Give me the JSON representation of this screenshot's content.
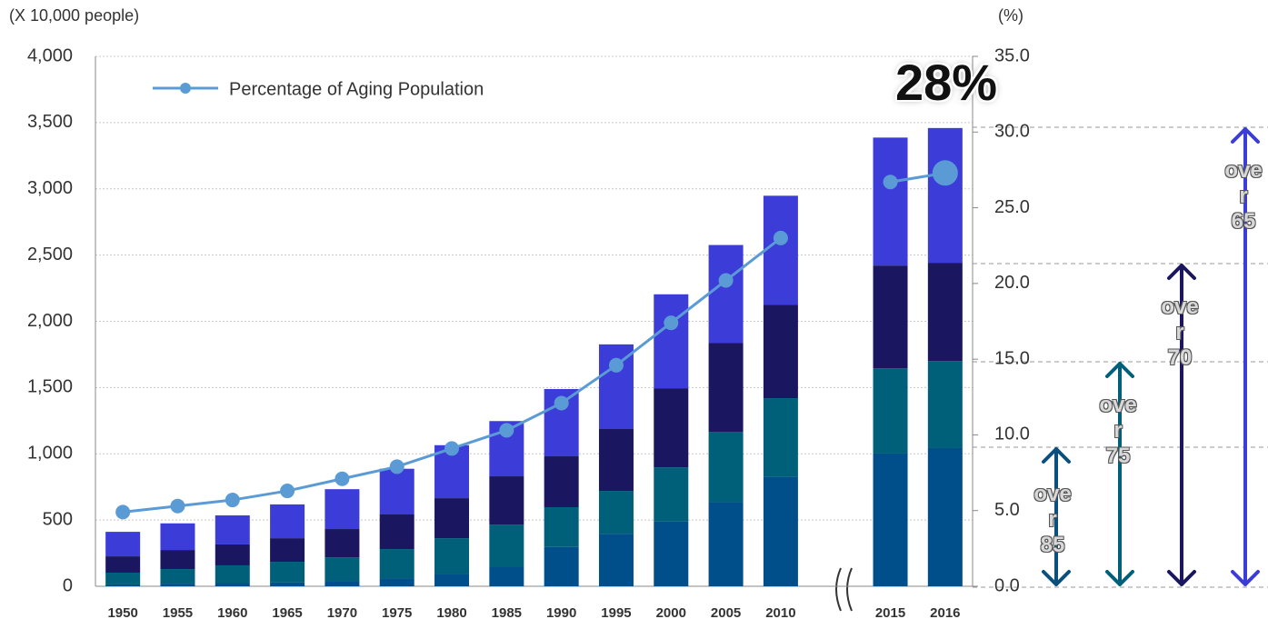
{
  "chart_data": {
    "type": "bar",
    "y_label": "(X 10,000 people)",
    "y2_label": "(%)",
    "categories": [
      "1950",
      "1955",
      "1960",
      "1965",
      "1970",
      "1975",
      "1980",
      "1985",
      "1990",
      "1995",
      "2000",
      "2005",
      "2010",
      null,
      "2015",
      "2016"
    ],
    "series": [
      {
        "type": "bar",
        "color": "#004e8a",
        "values": [
          14,
          20,
          24,
          30,
          38,
          58,
          93,
          144,
          297,
          397,
          488,
          635,
          826,
          null,
          1002,
          1043
        ]
      },
      {
        "type": "bar",
        "color": "#00607a",
        "values": [
          89,
          110,
          134,
          155,
          181,
          223,
          270,
          322,
          300,
          323,
          410,
          531,
          594,
          null,
          644,
          658
        ]
      },
      {
        "type": "bar",
        "color": "#1a1660",
        "values": [
          123,
          144,
          158,
          178,
          213,
          261,
          302,
          364,
          384,
          467,
          597,
          672,
          706,
          null,
          775,
          741
        ]
      },
      {
        "type": "bar",
        "color": "#3c3cd8",
        "values": [
          185,
          201,
          219,
          255,
          301,
          345,
          400,
          417,
          508,
          639,
          709,
          738,
          822,
          null,
          966,
          1017
        ]
      },
      {
        "type": "line",
        "axis": "y2",
        "name": "Percentage of Aging Population",
        "color": "#5b9bd5",
        "values": [
          4.9,
          5.3,
          5.7,
          6.3,
          7.1,
          7.9,
          9.1,
          10.3,
          12.1,
          14.6,
          17.4,
          20.2,
          23.0,
          null,
          26.7,
          27.3
        ]
      }
    ],
    "ylim": [
      0,
      4000
    ],
    "yticks": [
      0,
      500,
      {
        "value": 1000,
        "label": "1,000"
      },
      {
        "value": 1500,
        "label": "1,500"
      },
      {
        "value": 2000,
        "label": "2,000"
      },
      {
        "value": 2500,
        "label": "2,500"
      },
      {
        "value": 3000,
        "label": "3,000"
      },
      {
        "value": 3500,
        "label": "3,500"
      },
      {
        "value": 4000,
        "label": "4,000"
      }
    ],
    "y2lim": [
      0,
      35
    ],
    "y2ticks": [
      {
        "value": 0,
        "label": "0.0"
      },
      {
        "value": 5,
        "label": "5.0"
      },
      {
        "value": 10,
        "label": "10.0"
      },
      {
        "value": 15,
        "label": "15.0"
      },
      {
        "value": 20,
        "label": "20.0"
      },
      {
        "value": 25,
        "label": "25.0"
      },
      {
        "value": 30,
        "label": "30.0"
      },
      {
        "value": 35,
        "label": "35.0"
      }
    ],
    "grid": true,
    "legend": "top-left",
    "annotations": [
      {
        "text": "28%"
      },
      {
        "text": "over 85"
      },
      {
        "text": "over 75"
      },
      {
        "text": "over 70"
      },
      {
        "text": "over 65"
      }
    ]
  }
}
